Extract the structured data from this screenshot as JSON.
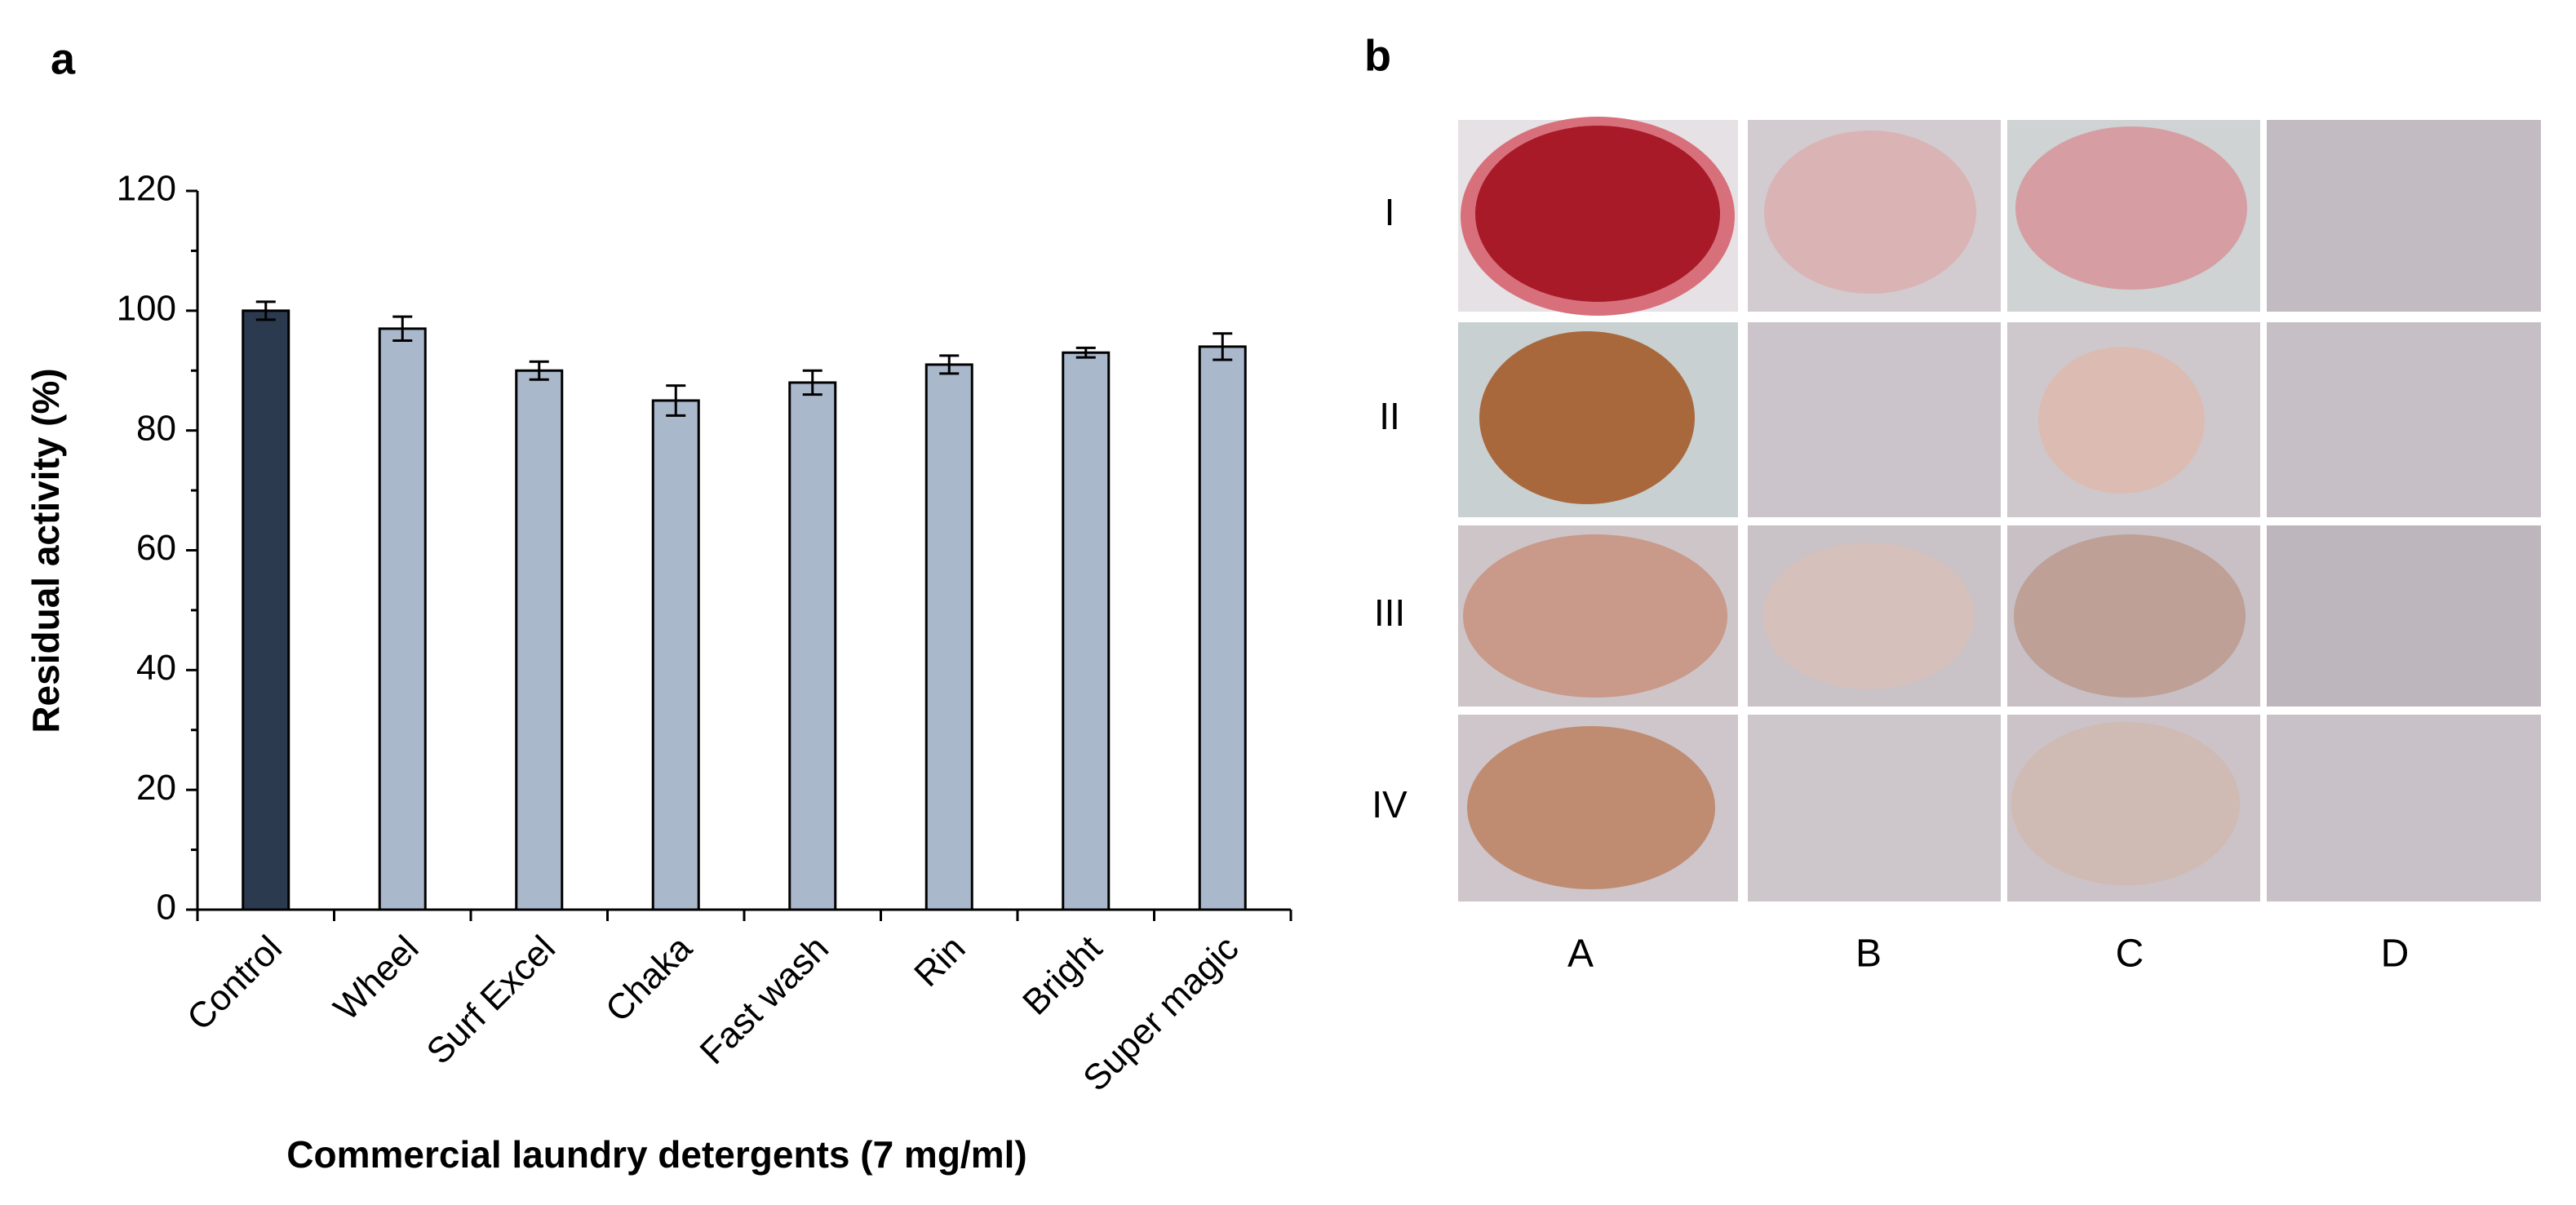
{
  "panel_labels": [
    "a",
    "b"
  ],
  "chart_data": {
    "type": "bar",
    "y_label": "Residual activity (%)",
    "x_label": "Commercial laundry detergents (7 mg/ml)",
    "categories": [
      "Control",
      "Wheel",
      "Surf Excel",
      "Chaka",
      "Fast wash",
      "Rin",
      "Bright",
      "Super magic"
    ],
    "values": [
      100,
      97,
      90,
      85,
      88,
      91,
      93,
      94
    ],
    "errors": [
      1.5,
      2,
      1.5,
      2.5,
      2,
      1.5,
      0.8,
      2.2
    ],
    "colors": [
      "#2b3a4e",
      "#aab8cc",
      "#aab8cc",
      "#aab8cc",
      "#aab8cc",
      "#aab8cc",
      "#aab8cc",
      "#aab8cc"
    ],
    "ylim": [
      0,
      120
    ],
    "yticks": [
      0,
      20,
      40,
      60,
      80,
      100,
      120
    ],
    "yminorticks": [
      10,
      30,
      50,
      70,
      90,
      110
    ]
  },
  "panel_b": {
    "row_labels": [
      "I",
      "II",
      "III",
      "IV"
    ],
    "column_labels": [
      "A",
      "B",
      "C",
      "D"
    ]
  }
}
